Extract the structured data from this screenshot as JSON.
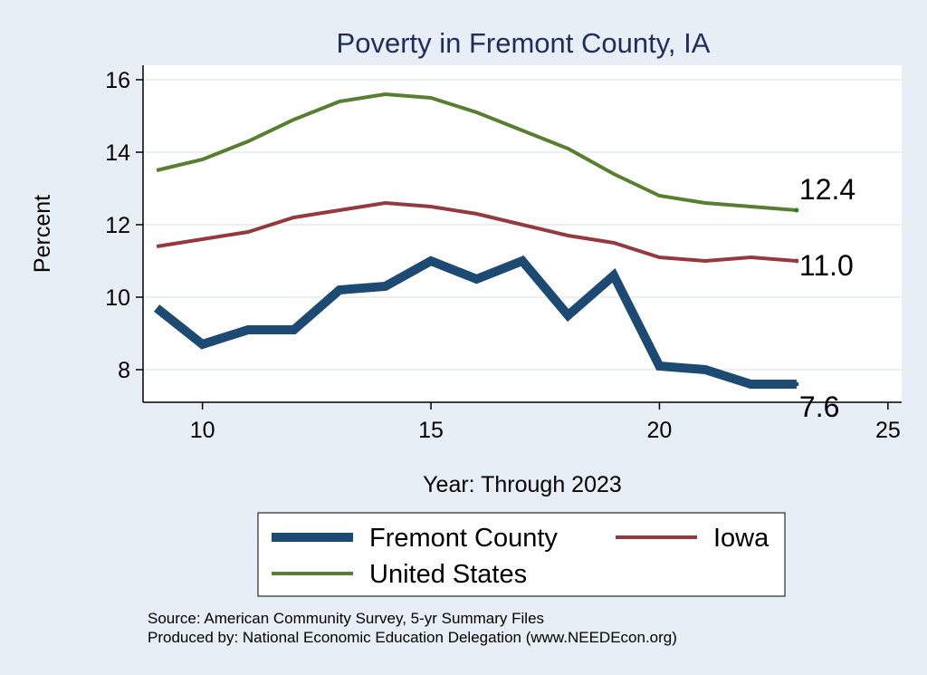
{
  "chart_data": {
    "type": "line",
    "title": "Poverty in Fremont County, IA",
    "xlabel": "Year: Through 2023",
    "ylabel": "Percent",
    "xlim": [
      8.7,
      25.3
    ],
    "ylim": [
      7.1,
      16.4
    ],
    "xticks": [
      10,
      15,
      20,
      25
    ],
    "yticks": [
      8,
      10,
      12,
      14,
      16
    ],
    "grid": true,
    "series": [
      {
        "name": "United States",
        "color": "#587e30",
        "x": [
          9,
          10,
          11,
          12,
          13,
          14,
          15,
          16,
          17,
          18,
          19,
          20,
          21,
          22,
          23
        ],
        "values": [
          13.5,
          13.8,
          14.3,
          14.9,
          15.4,
          15.6,
          15.5,
          15.1,
          14.6,
          14.1,
          13.4,
          12.8,
          12.6,
          12.5,
          12.4
        ],
        "end_label": "12.4"
      },
      {
        "name": "Iowa",
        "color": "#943a3f",
        "x": [
          9,
          10,
          11,
          12,
          13,
          14,
          15,
          16,
          17,
          18,
          19,
          20,
          21,
          22,
          23
        ],
        "values": [
          11.4,
          11.6,
          11.8,
          12.2,
          12.4,
          12.6,
          12.5,
          12.3,
          12.0,
          11.7,
          11.5,
          11.1,
          11.0,
          11.1,
          11.0
        ],
        "end_label": "11.0"
      },
      {
        "name": "Fremont County",
        "color": "#1c4a72",
        "x": [
          9,
          10,
          11,
          12,
          13,
          14,
          15,
          16,
          17,
          18,
          19,
          20,
          21,
          22,
          23
        ],
        "values": [
          9.7,
          8.7,
          9.1,
          9.1,
          10.2,
          10.3,
          11.0,
          10.5,
          11.0,
          9.5,
          10.6,
          8.1,
          8.0,
          7.6,
          7.6
        ],
        "end_label": "7.6"
      }
    ],
    "legend": {
      "placement": "bottom",
      "entries": [
        "Fremont County",
        "Iowa",
        "United States"
      ]
    },
    "notes": [
      "Source: American Community Survey, 5-yr Summary Files",
      "Produced by: National Economic Education Delegation (www.NEEDEcon.org)"
    ]
  }
}
